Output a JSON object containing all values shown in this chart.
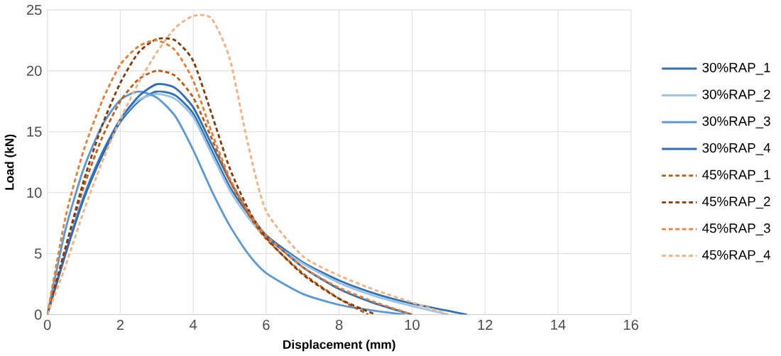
{
  "chart_data": {
    "type": "line",
    "xlabel": "Displacement (mm)",
    "ylabel": "Load (kN)",
    "xlim": [
      0,
      16
    ],
    "ylim": [
      0,
      25
    ],
    "xticks": [
      0,
      2,
      4,
      6,
      8,
      10,
      12,
      14,
      16
    ],
    "yticks": [
      0,
      5,
      10,
      15,
      20,
      25
    ],
    "grid": true,
    "legend": "right",
    "marker": "none",
    "series": [
      {
        "name": "30%RAP_1",
        "color": "#2e75b6",
        "line_style": "solid",
        "x": [
          0,
          0.5,
          1,
          1.5,
          2,
          2.5,
          3,
          3.5,
          4,
          4.5,
          5,
          5.5,
          6,
          7,
          8,
          9,
          10,
          11,
          11.5
        ],
        "values": [
          0,
          5,
          9.5,
          13,
          15.8,
          17.5,
          18.3,
          18,
          16.5,
          13.5,
          10.5,
          8.3,
          6.5,
          4.3,
          2.8,
          1.7,
          0.9,
          0.3,
          0
        ]
      },
      {
        "name": "30%RAP_2",
        "color": "#9dc3e6",
        "line_style": "solid",
        "x": [
          0,
          0.5,
          1,
          1.5,
          2,
          2.5,
          3,
          3.5,
          4,
          4.5,
          5,
          5.5,
          6,
          7,
          8,
          9,
          10,
          11
        ],
        "values": [
          0,
          5.2,
          9.8,
          13.3,
          16,
          17.6,
          18.1,
          17.7,
          16.2,
          13.2,
          10.2,
          8,
          6.3,
          4.2,
          2.6,
          1.5,
          0.7,
          0
        ]
      },
      {
        "name": "30%RAP_3",
        "color": "#5b9bd5",
        "line_style": "solid",
        "x": [
          0,
          0.5,
          1,
          1.5,
          2,
          2.5,
          3,
          3.5,
          4,
          4.5,
          5,
          5.5,
          6,
          7,
          8,
          9,
          9.8
        ],
        "values": [
          0,
          7,
          12,
          15.5,
          17.6,
          18.3,
          17.8,
          16.3,
          13.5,
          10.2,
          7.3,
          5,
          3.4,
          1.7,
          0.8,
          0.3,
          0
        ]
      },
      {
        "name": "30%RAP_4",
        "color": "#2f6eba",
        "line_style": "solid",
        "x": [
          0,
          0.5,
          1,
          1.5,
          2,
          2.5,
          3,
          3.5,
          4,
          4.5,
          5,
          5.5,
          6,
          7,
          8,
          9,
          10
        ],
        "values": [
          0,
          5,
          9.6,
          13.2,
          16,
          17.9,
          18.9,
          18.6,
          17,
          14,
          11,
          8.5,
          6.5,
          3.9,
          2.1,
          0.9,
          0
        ]
      },
      {
        "name": "45%RAP_1",
        "color": "#c55a11",
        "line_style": "dashed",
        "x": [
          0,
          0.5,
          1,
          1.5,
          2,
          2.5,
          3,
          3.5,
          4,
          4.5,
          5,
          5.5,
          6,
          7,
          8,
          8.8
        ],
        "values": [
          0,
          5.5,
          10.5,
          14.5,
          17.5,
          19.3,
          20,
          19.6,
          17.8,
          14.5,
          11,
          8.3,
          6.2,
          3.4,
          1.3,
          0
        ]
      },
      {
        "name": "45%RAP_2",
        "color": "#843c0c",
        "line_style": "dashed",
        "x": [
          0,
          0.5,
          1,
          1.5,
          2,
          2.5,
          3,
          3.5,
          4,
          4.5,
          5,
          5.5,
          6,
          7,
          8,
          9
        ],
        "values": [
          0,
          5.5,
          11,
          15.5,
          19,
          21.5,
          22.6,
          22.5,
          20.8,
          16.5,
          12,
          8.7,
          6.3,
          3.3,
          1.3,
          0
        ]
      },
      {
        "name": "45%RAP_3",
        "color": "#ed7d31",
        "line_style": "dashed",
        "x": [
          0,
          0.5,
          1,
          1.5,
          2,
          2.5,
          3,
          3.5,
          4,
          4.5,
          5,
          5.5,
          6,
          7,
          8,
          9,
          10
        ],
        "values": [
          0,
          8,
          13.5,
          17.5,
          20.5,
          22,
          22.5,
          21.7,
          19.2,
          15,
          11.2,
          8.5,
          6.5,
          3.9,
          2.2,
          1,
          0
        ]
      },
      {
        "name": "45%RAP_4",
        "color": "#f4b183",
        "line_style": "dashed",
        "x": [
          0,
          0.5,
          1,
          1.5,
          2,
          2.5,
          3,
          3.5,
          4,
          4.5,
          5,
          5.5,
          6,
          7,
          8,
          9,
          10,
          11
        ],
        "values": [
          0,
          4,
          8.5,
          12.5,
          16,
          19,
          21.5,
          23.5,
          24.5,
          24.3,
          21,
          14,
          8.5,
          4.8,
          3.2,
          2,
          1,
          0
        ]
      }
    ]
  }
}
